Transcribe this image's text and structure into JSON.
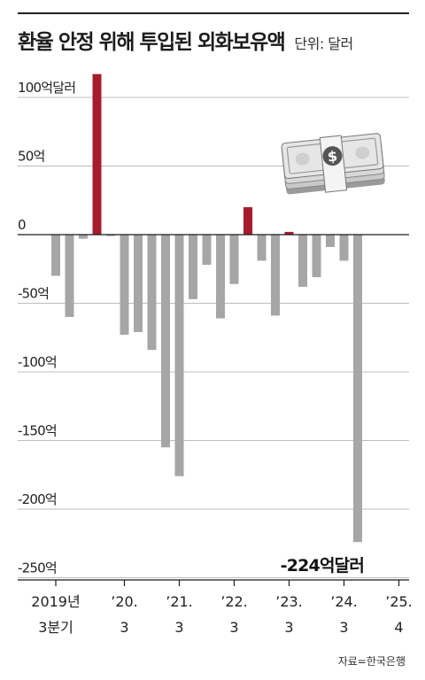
{
  "header": {
    "title": "환율 안정 위해 투입된 외화보유액",
    "unit": "단위: 달러"
  },
  "source": "자료=한국은행",
  "colors": {
    "positive": "#a51d2d",
    "negative": "#a6a6a6",
    "grid": "#bdbdbd",
    "axis": "#1a1a1a"
  },
  "icons": {
    "illustration": "dollar-bills-stack-icon"
  },
  "chart_data": {
    "type": "bar",
    "ylim": [
      -250,
      120
    ],
    "yticks": [
      {
        "value": 100,
        "label": "100억달러"
      },
      {
        "value": 50,
        "label": "50억"
      },
      {
        "value": 0,
        "label": "0"
      },
      {
        "value": -50,
        "label": "-50억"
      },
      {
        "value": -100,
        "label": "-100억"
      },
      {
        "value": -150,
        "label": "-150억"
      },
      {
        "value": -200,
        "label": "-200억"
      },
      {
        "value": -250,
        "label": "-250억"
      }
    ],
    "xticks": [
      {
        "index": 0,
        "line1": "2019년",
        "line2": "3분기"
      },
      {
        "index": 5,
        "line1": "’20.",
        "line2": "3"
      },
      {
        "index": 9,
        "line1": "’21.",
        "line2": "3"
      },
      {
        "index": 13,
        "line1": "’22.",
        "line2": "3"
      },
      {
        "index": 17,
        "line1": "’23.",
        "line2": "3"
      },
      {
        "index": 21,
        "line1": "’24.",
        "line2": "3"
      },
      {
        "index": 25,
        "line1": "’25.",
        "line2": "4"
      }
    ],
    "values": [
      -30,
      -60,
      -3,
      117,
      -1,
      -73,
      -71,
      -84,
      -155,
      -176,
      -47,
      -22,
      -61,
      -36,
      20,
      -19,
      -59,
      2,
      -38,
      -31,
      -9,
      -19,
      -224
    ],
    "annotation": {
      "index": 22,
      "label": "-224억달러"
    },
    "grid": true
  }
}
